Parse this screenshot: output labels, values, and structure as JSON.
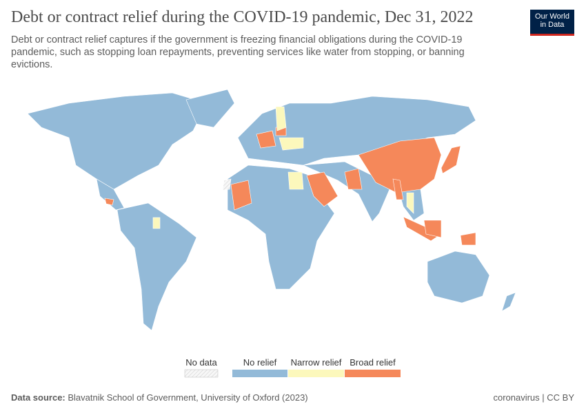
{
  "header": {
    "title": "Debt or contract relief during the COVID-19 pandemic, Dec 31, 2022",
    "subtitle": "Debt or contract relief captures if the government is freezing financial obligations during the COVID-19 pandemic, such as stopping loan repayments, preventing services like water from stopping, or banning evictions.",
    "logo": [
      "Our World",
      "in Data"
    ]
  },
  "legend": [
    {
      "name": "No data",
      "color": "#f7f7f7"
    },
    {
      "name": "No relief",
      "color": "#93bad8"
    },
    {
      "name": "Narrow relief",
      "color": "#fcf8bc"
    },
    {
      "name": "Broad relief",
      "color": "#f5885a"
    }
  ],
  "footer": {
    "source_label": "Data source:",
    "source": "Blavatnik School of Government, University of Oxford (2023)",
    "right": "coronavirus | CC BY"
  }
}
